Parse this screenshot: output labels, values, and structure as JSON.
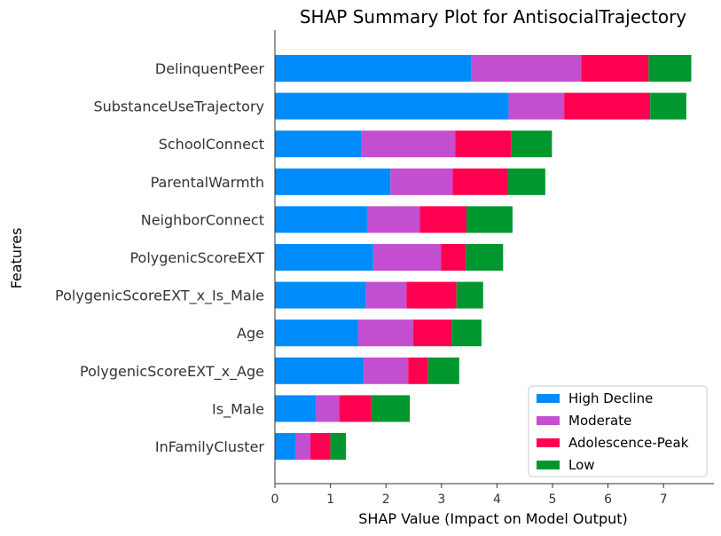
{
  "chart_data": {
    "type": "bar",
    "orientation": "horizontal",
    "stacked": true,
    "title": "SHAP Summary Plot for AntisocialTrajectory",
    "xlabel": "SHAP Value (Impact on Model Output)",
    "ylabel": "Features",
    "xlim": [
      0,
      7.9
    ],
    "xticks": [
      "0",
      "1",
      "2",
      "3",
      "4",
      "5",
      "6",
      "7"
    ],
    "grid": false,
    "legend_position": "bottom-right",
    "categories": [
      "DelinquentPeer",
      "SubstanceUseTrajectory",
      "SchoolConnect",
      "ParentalWarmth",
      "NeighborConnect",
      "PolygenicScoreEXT",
      "PolygenicScoreEXT_x_Is_Male",
      "Age",
      "PolygenicScoreEXT_x_Age",
      "Is_Male",
      "InFamilyCluster"
    ],
    "series": [
      {
        "name": "High Decline",
        "color": "#008bfb",
        "values": [
          3.53,
          4.21,
          1.55,
          2.08,
          1.66,
          1.77,
          1.64,
          1.5,
          1.6,
          0.74,
          0.38
        ]
      },
      {
        "name": "Moderate",
        "color": "#c44ed0",
        "values": [
          1.99,
          1.0,
          1.7,
          1.12,
          0.95,
          1.22,
          0.73,
          0.99,
          0.8,
          0.42,
          0.26
        ]
      },
      {
        "name": "Adolescence-Peak",
        "color": "#ff0051",
        "values": [
          1.21,
          1.55,
          1.01,
          1.0,
          0.84,
          0.45,
          0.9,
          0.69,
          0.36,
          0.58,
          0.36
        ]
      },
      {
        "name": "Low",
        "color": "#00972e",
        "values": [
          0.77,
          0.65,
          0.73,
          0.67,
          0.83,
          0.67,
          0.48,
          0.54,
          0.56,
          0.69,
          0.28
        ]
      }
    ]
  }
}
